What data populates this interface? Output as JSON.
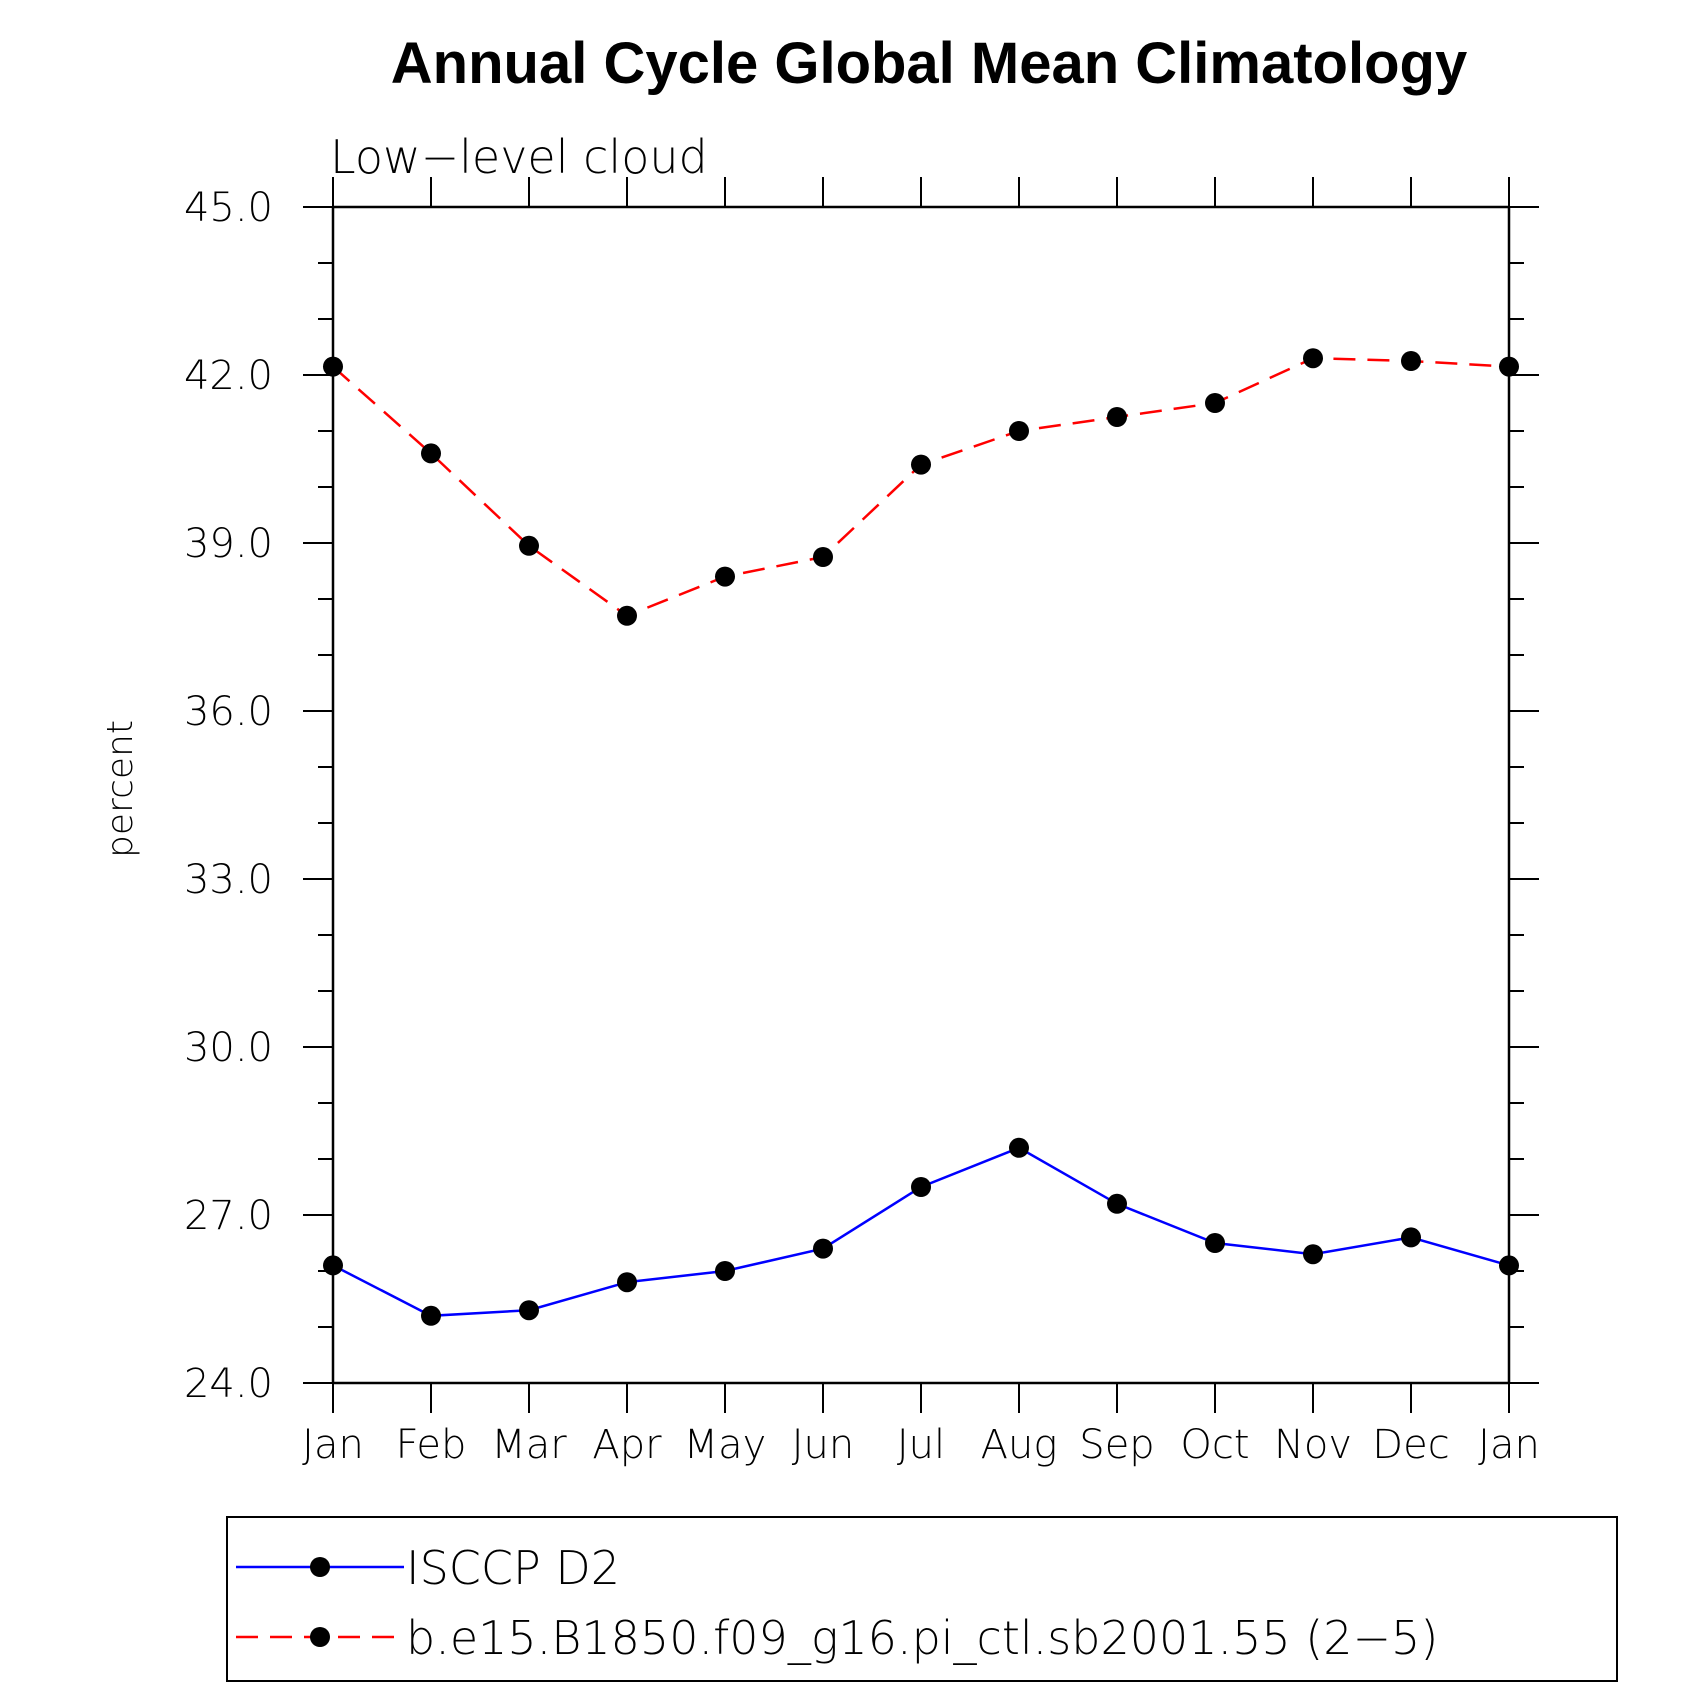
{
  "chart_data": {
    "type": "line",
    "title": "Annual Cycle Global Mean Climatology",
    "subtitle": "Low−level cloud",
    "xlabel": "",
    "ylabel": "percent",
    "ylim": [
      24.0,
      45.0
    ],
    "yticks": [
      "24.0",
      "27.0",
      "30.0",
      "33.0",
      "36.0",
      "39.0",
      "42.0",
      "45.0"
    ],
    "categories": [
      "Jan",
      "Feb",
      "Mar",
      "Apr",
      "May",
      "Jun",
      "Jul",
      "Aug",
      "Sep",
      "Oct",
      "Nov",
      "Dec",
      "Jan"
    ],
    "grid": false,
    "legend_position": "bottom",
    "series": [
      {
        "name": "ISCCP D2",
        "color": "#0000ff",
        "dash": "solid",
        "values": [
          26.1,
          25.2,
          25.3,
          25.8,
          26.0,
          26.4,
          27.5,
          28.2,
          27.2,
          26.5,
          26.3,
          26.6,
          26.1
        ]
      },
      {
        "name": "b.e15.B1850.f09_g16.pi_ctl.sb2001.55 (2−5)",
        "color": "#ff0000",
        "dash": "dashed",
        "values": [
          42.15,
          40.6,
          38.95,
          37.7,
          38.4,
          38.75,
          40.4,
          41.0,
          41.25,
          41.5,
          42.3,
          42.25,
          42.15
        ]
      }
    ]
  }
}
